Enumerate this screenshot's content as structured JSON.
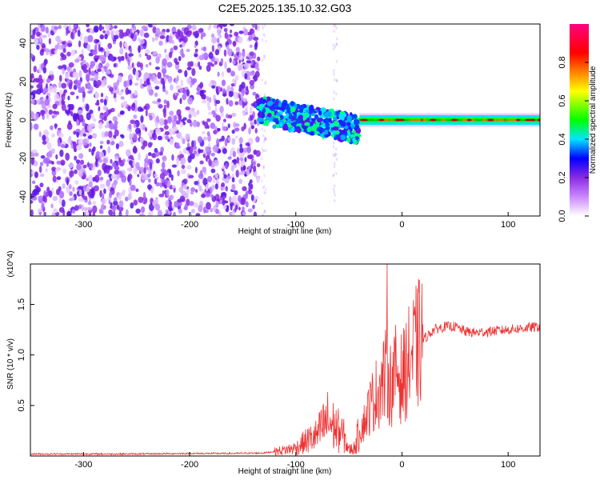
{
  "chart_data": [
    {
      "type": "heatmap",
      "title": "C2E5.2025.135.10.32.G03",
      "xlabel": "Height of straight line (km)",
      "ylabel": "Frequency (Hz)",
      "xlim": [
        -350,
        130
      ],
      "ylim": [
        -50,
        50
      ],
      "xticks": [
        -300,
        -200,
        -100,
        0,
        100
      ],
      "yticks": [
        -40,
        -20,
        0,
        20,
        40
      ],
      "colorbar": {
        "label": "Normalized spectral amplitude",
        "range": [
          0,
          1
        ],
        "ticks": [
          "0.0",
          "0.2",
          "0.4",
          "0.6",
          "0.8"
        ],
        "colors": [
          "#ffffff",
          "#cc88ff",
          "#8a2be2",
          "#0000ff",
          "#00e5ff",
          "#00ff00",
          "#ffff00",
          "#ff8000",
          "#ff0000",
          "#ff0080"
        ]
      },
      "regions": [
        {
          "x": [
            -350,
            -135
          ],
          "description_level": "diffuse",
          "amplitude": 0.15,
          "frequency_spread": [
            -50,
            50
          ]
        },
        {
          "x": [
            -135,
            -40
          ],
          "amplitude": 0.4,
          "center_frequency": [
            5,
            -5
          ]
        },
        {
          "x": [
            -40,
            130
          ],
          "amplitude": 0.85,
          "center_frequency": [
            0,
            0
          ]
        }
      ]
    },
    {
      "type": "line",
      "title": "",
      "xlabel": "Height of straight line (km)",
      "ylabel": "SNR (10 * v/v)",
      "y_multiplier": "(x10^4)",
      "xlim": [
        -350,
        130
      ],
      "ylim": [
        0,
        19000
      ],
      "xticks": [
        -300,
        -200,
        -100,
        0,
        100
      ],
      "yticks": [
        "0.5",
        "1.0",
        "1.5"
      ],
      "series": [
        {
          "color": "#ee3333",
          "x": [
            -350,
            -300,
            -250,
            -200,
            -160,
            -130,
            -110,
            -100,
            -90,
            -80,
            -75,
            -70,
            -65,
            -60,
            -55,
            -50,
            -45,
            -40,
            -35,
            -30,
            -25,
            -20,
            -15,
            -10,
            -5,
            0,
            5,
            10,
            15,
            20,
            25,
            30,
            40,
            50,
            60,
            70,
            80,
            90,
            100,
            110,
            120,
            130
          ],
          "y": [
            200,
            200,
            200,
            250,
            250,
            300,
            600,
            800,
            1500,
            2000,
            2800,
            3500,
            3000,
            2500,
            2000,
            600,
            800,
            2500,
            3500,
            5000,
            6000,
            7000,
            8000,
            7000,
            8500,
            7500,
            9000,
            10000,
            11000,
            11500,
            12000,
            12500,
            12800,
            12800,
            12300,
            12200,
            12300,
            12400,
            12500,
            12600,
            12700,
            12800
          ]
        }
      ],
      "spike": {
        "x": -14,
        "y": 19000
      }
    }
  ]
}
